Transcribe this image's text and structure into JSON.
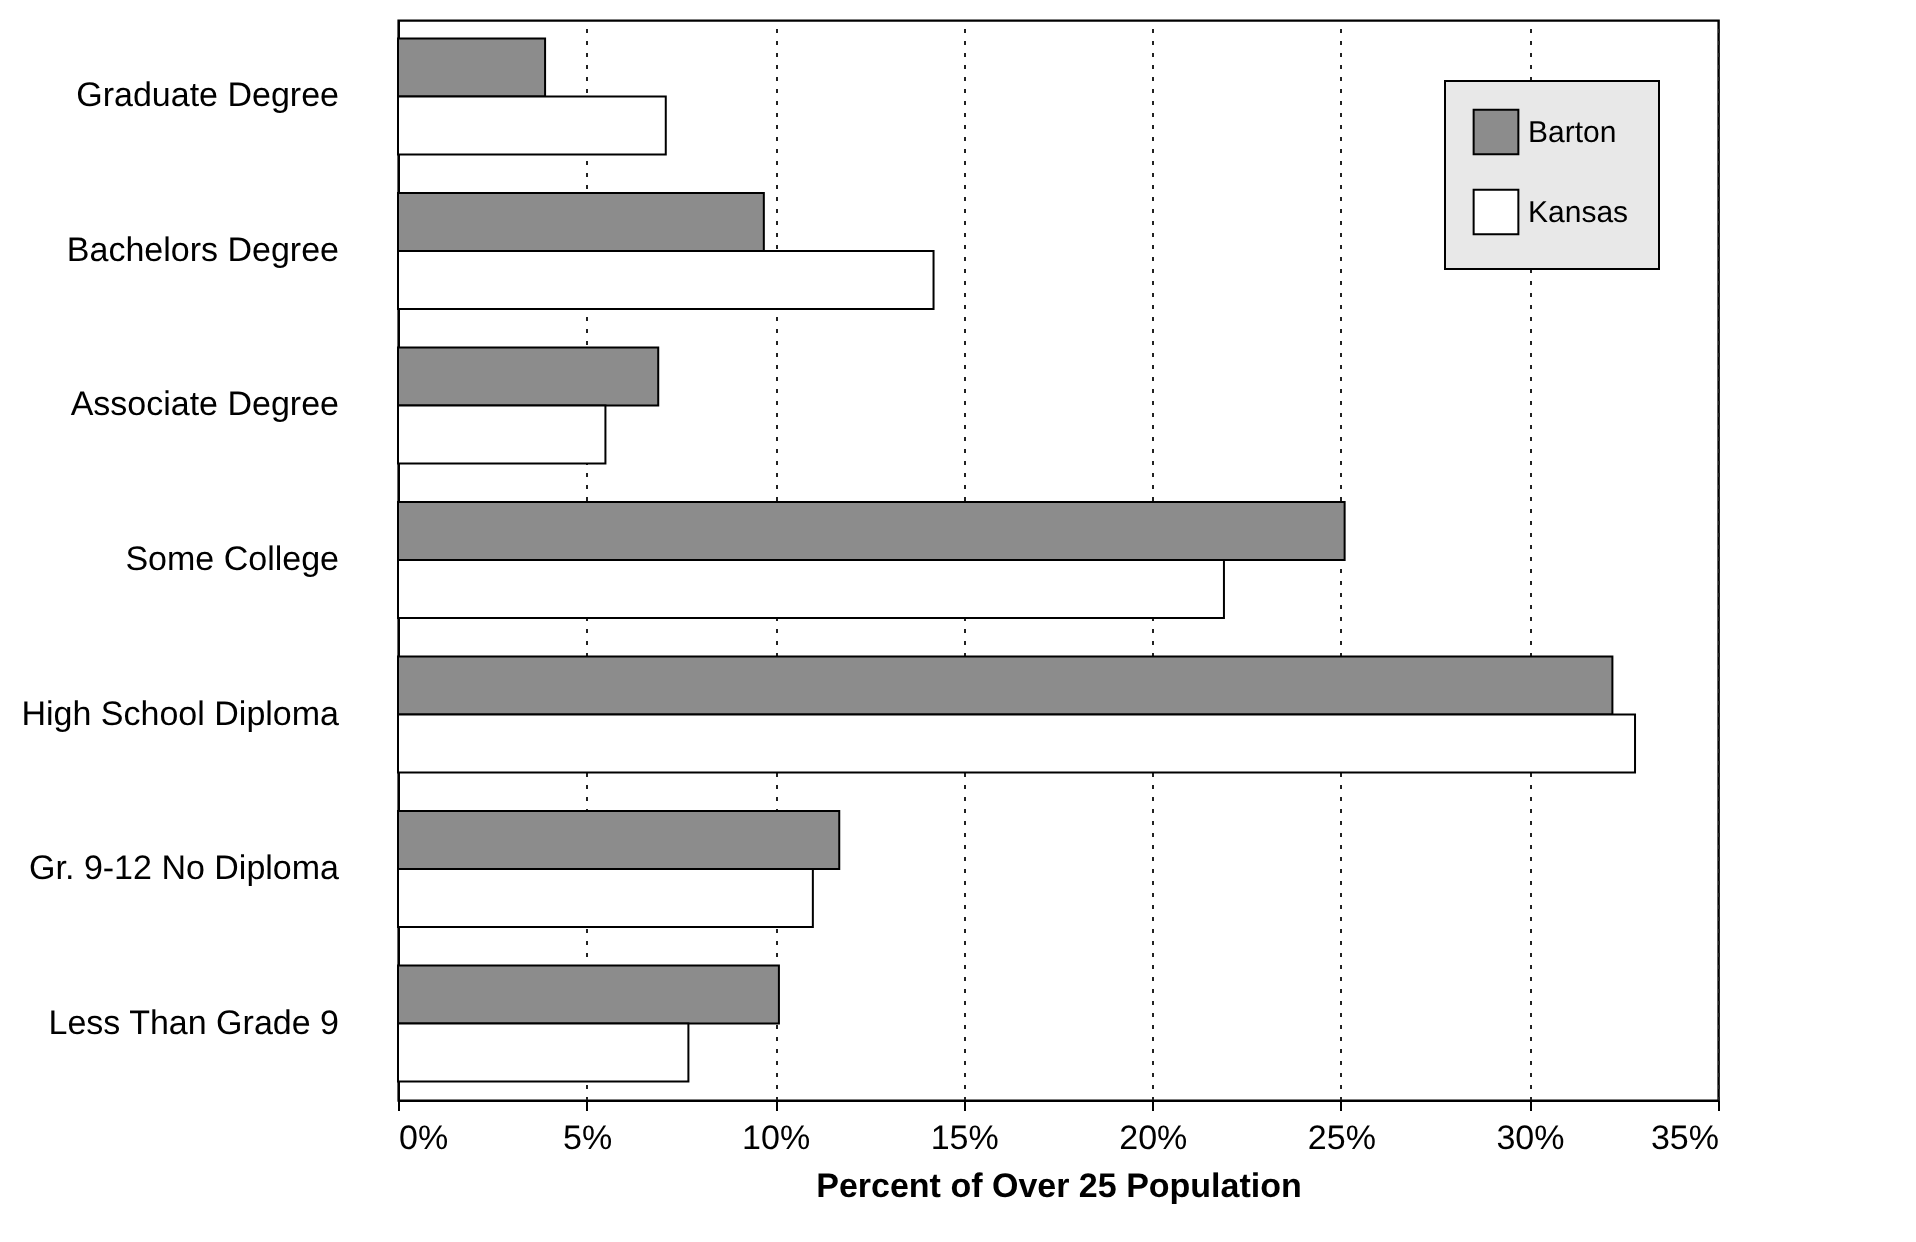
{
  "chart_data": {
    "type": "bar",
    "orientation": "horizontal",
    "xlabel": "Percent of Over 25 Population",
    "categories": [
      "Graduate Degree",
      "Bachelors Degree",
      "Associate Degree",
      "Some College",
      "High School Diploma",
      "Gr. 9-12 No Diploma",
      "Less Than Grade 9"
    ],
    "series": [
      {
        "name": "Barton",
        "color": "#8c8c8c",
        "values": [
          3.9,
          9.7,
          6.9,
          25.1,
          32.2,
          11.7,
          10.1
        ]
      },
      {
        "name": "Kansas",
        "color": "#ffffff",
        "values": [
          7.1,
          14.2,
          5.5,
          21.9,
          32.8,
          11.0,
          7.7
        ]
      }
    ],
    "xlim": [
      0,
      35
    ],
    "xticks": [
      {
        "value": 0,
        "label": "0%"
      },
      {
        "value": 5,
        "label": "5%"
      },
      {
        "value": 10,
        "label": "10%"
      },
      {
        "value": 15,
        "label": "15%"
      },
      {
        "value": 20,
        "label": "20%"
      },
      {
        "value": 25,
        "label": "25%"
      },
      {
        "value": 30,
        "label": "30%"
      },
      {
        "value": 35,
        "label": "35%"
      }
    ],
    "grid": "x",
    "legend": "top right"
  }
}
